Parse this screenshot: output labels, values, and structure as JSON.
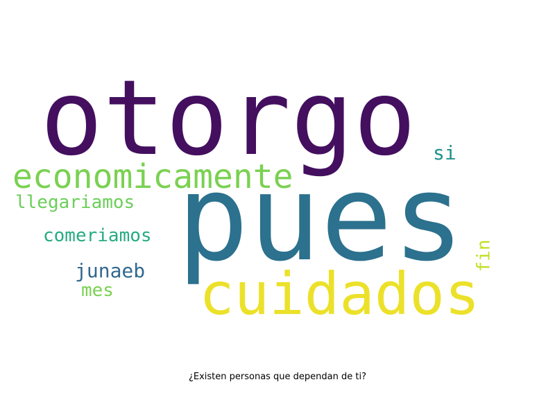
{
  "caption": "¿Existen personas que dependan de ti?",
  "words": [
    {
      "text": "otorgo",
      "color": "#440f5f"
    },
    {
      "text": "pues",
      "color": "#2c718e"
    },
    {
      "text": "cuidados",
      "color": "#ece12a"
    },
    {
      "text": "economicamente",
      "color": "#7ad151"
    },
    {
      "text": "llegariamos",
      "color": "#6cce59"
    },
    {
      "text": "comeriamos",
      "color": "#26ab83"
    },
    {
      "text": "junaeb",
      "color": "#31688e"
    },
    {
      "text": "mes",
      "color": "#7ad151"
    },
    {
      "text": "si",
      "color": "#21918c"
    },
    {
      "text": "fin",
      "color": "#c2df23"
    }
  ]
}
